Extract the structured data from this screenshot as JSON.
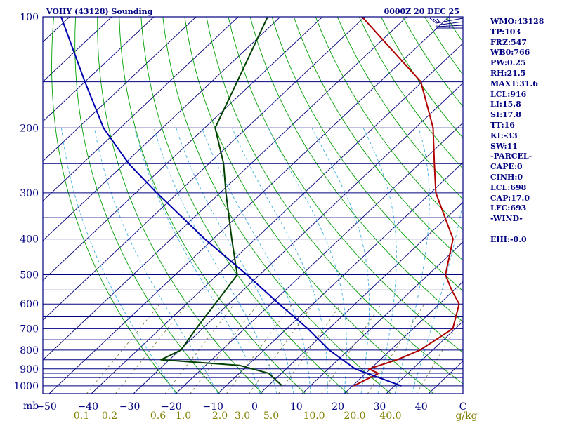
{
  "header": {
    "station": "VOHY (43128) Sounding",
    "time": "0000Z 20 DEC 25"
  },
  "indices": [
    "WMO:43128",
    "TP:103",
    "FRZ:547",
    "WB0:766",
    "PW:0.25",
    "RH:21.5",
    "MAXT:31.6",
    "LCL:916",
    "LI:15.8",
    "SI:17.8",
    "TT:16",
    "KI:-33",
    "SW:11",
    "-PARCEL-",
    "CAPE:0",
    "CINH:0",
    "LCL:698",
    "CAP:17.0",
    "LFC:693",
    "-WIND-",
    "",
    "EHI:-0.0"
  ],
  "colors": {
    "frame": "#000080",
    "isobar": "#000080",
    "isotherm": "#000080",
    "dry_adiabat": "#00a000",
    "moist_adiabat": "#40b0e0",
    "mixing_ratio": "#808040",
    "temperature": "#b00000",
    "dewpoint": "#004000",
    "parcel": "#0000b0",
    "mixing_label": "#808000"
  },
  "chart_data": {
    "type": "line",
    "title": "VOHY (43128) Sounding",
    "x_unit": "°C",
    "y_unit": "mb",
    "x_tick_labels": [
      "−50",
      "−40",
      "−30",
      "−20",
      "−10",
      "0",
      "10",
      "20",
      "30",
      "40",
      "C"
    ],
    "y_tick_labels": [
      "100",
      "200",
      "300",
      "400",
      "500",
      "600",
      "700",
      "800",
      "900",
      "1000"
    ],
    "mixing_ratio_labels": [
      "0.1",
      "0.2",
      "0.6",
      "1.0",
      "2.0",
      "3.0",
      "5.0",
      "10.0",
      "20.0",
      "40.0",
      "g/kg"
    ],
    "series": [
      {
        "key": "temperature",
        "points": [
          [
            1000,
            20.3
          ],
          [
            925,
            23.0
          ],
          [
            900,
            19.6
          ],
          [
            850,
            24.0
          ],
          [
            800,
            27.0
          ],
          [
            700,
            29.4
          ],
          [
            600,
            24.7
          ],
          [
            550,
            19.4
          ],
          [
            500,
            14.1
          ],
          [
            400,
            6.9
          ],
          [
            300,
            -8.8
          ],
          [
            250,
            -16.5
          ],
          [
            200,
            -25.8
          ],
          [
            150,
            -40.3
          ],
          [
            100,
            -70.6
          ],
          [
            95,
            -77.2
          ]
        ]
      },
      {
        "key": "dewpoint",
        "points": [
          [
            1000,
            3.3
          ],
          [
            925,
            -3.0
          ],
          [
            880,
            -12.0
          ],
          [
            850,
            -32.0
          ],
          [
            800,
            -29.7
          ],
          [
            700,
            -31.5
          ],
          [
            600,
            -33.2
          ],
          [
            500,
            -35.3
          ],
          [
            400,
            -45.6
          ],
          [
            300,
            -58.6
          ],
          [
            250,
            -66.5
          ],
          [
            200,
            -77.5
          ],
          [
            150,
            -83.9
          ],
          [
            100,
            -93.0
          ],
          [
            95,
            -95.6
          ]
        ]
      },
      {
        "key": "parcel",
        "points": [
          [
            1000,
            31.6
          ],
          [
            900,
            16.4
          ],
          [
            800,
            5.5
          ],
          [
            700,
            -5.0
          ],
          [
            600,
            -18.0
          ],
          [
            500,
            -33.0
          ],
          [
            400,
            -52.0
          ],
          [
            300,
            -75.0
          ],
          [
            250,
            -89.0
          ],
          [
            200,
            -104.0
          ],
          [
            150,
            -120.0
          ],
          [
            100,
            -142.0
          ],
          [
            95,
            -146.0
          ]
        ]
      }
    ],
    "isobars_mb": [
      100,
      150,
      200,
      250,
      300,
      350,
      400,
      450,
      500,
      550,
      600,
      650,
      700,
      750,
      800,
      850,
      900,
      925,
      950,
      1000
    ],
    "y_range_mb": [
      1050,
      100
    ],
    "x_range_c": [
      -50,
      50
    ],
    "wind_barbs": []
  }
}
